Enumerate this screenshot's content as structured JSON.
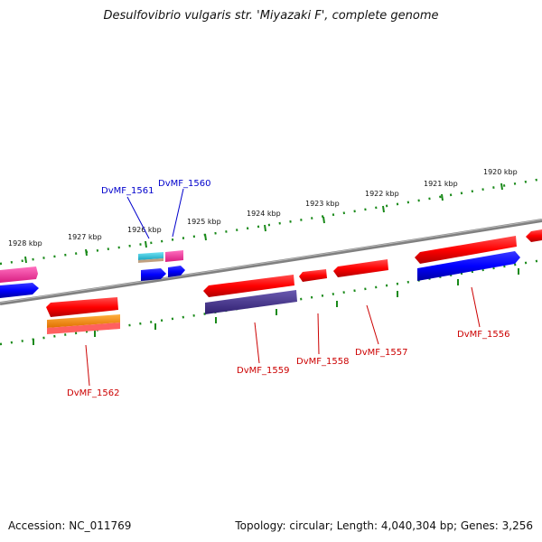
{
  "title": "Desulfovibrio vulgaris str. 'Miyazaki F', complete genome",
  "accession": "Accession: NC_011769",
  "stats": "Topology: circular; Length: 4,040,304 bp; Genes: 3,256",
  "ticks": [
    {
      "label": "1928 kbp"
    },
    {
      "label": "1927 kbp"
    },
    {
      "label": "1926 kbp"
    },
    {
      "label": "1925 kbp"
    },
    {
      "label": "1924 kbp"
    },
    {
      "label": "1923 kbp"
    },
    {
      "label": "1922 kbp"
    },
    {
      "label": "1921 kbp"
    },
    {
      "label": "1920 kbp"
    }
  ],
  "gene_labels": [
    {
      "name": "DvMF_1561",
      "strand": "plus"
    },
    {
      "name": "DvMF_1560",
      "strand": "plus"
    },
    {
      "name": "DvMF_1562",
      "strand": "minus"
    },
    {
      "name": "DvMF_1559",
      "strand": "minus"
    },
    {
      "name": "DvMF_1558",
      "strand": "minus"
    },
    {
      "name": "DvMF_1557",
      "strand": "minus"
    },
    {
      "name": "DvMF_1556",
      "strand": "minus"
    }
  ],
  "colors": {
    "red": "#ff0000",
    "blue": "#0000ff",
    "magenta": "#ff2a9c",
    "cyan": "#22c4e0",
    "orange": "#ff8c00",
    "slate": "#4b3b8c",
    "backbone": "#808080",
    "tick": "#1a8a1a",
    "minus_label": "#cc0000",
    "plus_label": "#0000cc"
  }
}
